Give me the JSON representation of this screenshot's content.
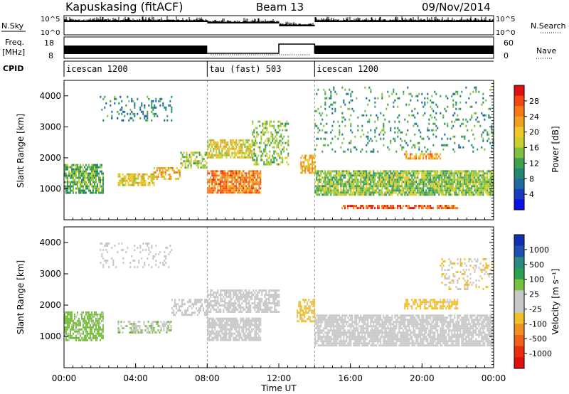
{
  "header": {
    "station": "Kapuskasing (fitACF)",
    "beam": "Beam 13",
    "date": "09/Nov/2014"
  },
  "strips": {
    "nsky_label": "N.Sky",
    "nsearch_label": "N.Search",
    "noise_ticks": [
      "10^5",
      "10^0"
    ],
    "freq_label": "Freq.",
    "freq_unit": "[MHz]",
    "freq_ticks": [
      "18",
      "8"
    ],
    "nave_label": "Nave",
    "nave_ticks": [
      "60",
      "0"
    ],
    "cpid_label": "CPID",
    "programs": [
      {
        "name": "icescan 1200",
        "start_h": 0,
        "end_h": 8
      },
      {
        "name": "tau (fast) 503",
        "start_h": 8,
        "end_h": 14
      },
      {
        "name": "icescan 1200",
        "start_h": 14,
        "end_h": 24
      }
    ]
  },
  "colorbars": {
    "power": {
      "label": "Power [dB]",
      "ticks": [
        "28",
        "24",
        "20",
        "16",
        "12",
        "8",
        "4"
      ],
      "colors": [
        "#e01010",
        "#f04810",
        "#f87818",
        "#f0a020",
        "#f0c828",
        "#c8d030",
        "#80c040",
        "#40a050",
        "#208870",
        "#206aa0",
        "#1a3cc0",
        "#0a10e8"
      ]
    },
    "velocity": {
      "label": "Velocity [m s⁻¹]",
      "ticks": [
        "1000",
        "500",
        "100",
        "25",
        "-25",
        "-100",
        "-500",
        "-1000"
      ],
      "colors": [
        "#1030b0",
        "#2050b0",
        "#2a8a80",
        "#2aa050",
        "#7ac040",
        "#c8c8c8",
        "#c8c8c8",
        "#f0c028",
        "#f09020",
        "#f06018",
        "#e83010",
        "#e01010"
      ]
    }
  },
  "chart_data": [
    {
      "type": "heatmap",
      "panel": "power",
      "ylabel": "Slant Range [km]",
      "y_ticks": [
        1000,
        2000,
        3000,
        4000
      ],
      "ylim": [
        0,
        4500
      ],
      "xlim_hours": [
        0,
        24
      ],
      "scatter_bands": [
        {
          "t0": 0.0,
          "t1": 2.2,
          "r0": 900,
          "r1": 1800,
          "level": 12,
          "density": 0.75
        },
        {
          "t0": 3.0,
          "t1": 5.0,
          "r0": 1150,
          "r1": 1500,
          "level": 18,
          "density": 0.7
        },
        {
          "t0": 5.0,
          "t1": 6.5,
          "r0": 1300,
          "r1": 1700,
          "level": 20,
          "density": 0.55
        },
        {
          "t0": 6.5,
          "t1": 8.0,
          "r0": 1700,
          "r1": 2200,
          "level": 14,
          "density": 0.55
        },
        {
          "t0": 8.0,
          "t1": 11.0,
          "r0": 900,
          "r1": 1600,
          "level": 24,
          "density": 0.85
        },
        {
          "t0": 8.0,
          "t1": 10.5,
          "r0": 2000,
          "r1": 2600,
          "level": 18,
          "density": 0.7
        },
        {
          "t0": 10.5,
          "t1": 12.5,
          "r0": 1800,
          "r1": 3200,
          "level": 14,
          "density": 0.4
        },
        {
          "t0": 13.2,
          "t1": 14.0,
          "r0": 1500,
          "r1": 2100,
          "level": 20,
          "density": 0.7
        },
        {
          "t0": 14.0,
          "t1": 24.0,
          "r0": 800,
          "r1": 1600,
          "level": 14,
          "density": 0.85
        },
        {
          "t0": 15.5,
          "t1": 22.0,
          "r0": 350,
          "r1": 480,
          "level": 26,
          "density": 0.7
        },
        {
          "t0": 19.0,
          "t1": 21.0,
          "r0": 1950,
          "r1": 2150,
          "level": 22,
          "density": 0.7
        },
        {
          "t0": 2.0,
          "t1": 6.0,
          "r0": 3200,
          "r1": 4000,
          "level": 8,
          "density": 0.18
        },
        {
          "t0": 14.0,
          "t1": 24.0,
          "r0": 2200,
          "r1": 4300,
          "level": 10,
          "density": 0.12
        }
      ]
    },
    {
      "type": "heatmap",
      "panel": "velocity",
      "ylabel": "Slant Range [km]",
      "y_ticks": [
        1000,
        2000,
        3000,
        4000
      ],
      "ylim": [
        0,
        4500
      ],
      "xlim_hours": [
        0,
        24
      ],
      "x_ticks": [
        "00:00",
        "04:00",
        "08:00",
        "12:00",
        "16:00",
        "20:00",
        "00:00"
      ],
      "xlabel": "Time UT",
      "scatter_bands": [
        {
          "t0": 0.0,
          "t1": 2.2,
          "r0": 900,
          "r1": 1800,
          "level": 300,
          "density": 0.7
        },
        {
          "t0": 3.0,
          "t1": 6.0,
          "r0": 1150,
          "r1": 1500,
          "level": 200,
          "density": 0.6
        },
        {
          "t0": 6.0,
          "t1": 8.0,
          "r0": 1700,
          "r1": 2200,
          "level": 0,
          "density": 0.45
        },
        {
          "t0": 8.0,
          "t1": 11.0,
          "r0": 900,
          "r1": 1600,
          "level": 0,
          "density": 0.8
        },
        {
          "t0": 8.0,
          "t1": 12.0,
          "r0": 1800,
          "r1": 2500,
          "level": 0,
          "density": 0.7
        },
        {
          "t0": 13.0,
          "t1": 14.0,
          "r0": 1500,
          "r1": 2200,
          "level": -300,
          "density": 0.6
        },
        {
          "t0": 14.0,
          "t1": 24.0,
          "r0": 700,
          "r1": 1700,
          "level": 0,
          "density": 0.8
        },
        {
          "t0": 19.0,
          "t1": 22.0,
          "r0": 1900,
          "r1": 2200,
          "level": -300,
          "density": 0.6
        },
        {
          "t0": 21.0,
          "t1": 24.0,
          "r0": 2500,
          "r1": 3500,
          "level": -200,
          "density": 0.25
        },
        {
          "t0": 2.0,
          "t1": 6.0,
          "r0": 3200,
          "r1": 4000,
          "level": 50,
          "density": 0.15
        }
      ]
    }
  ]
}
